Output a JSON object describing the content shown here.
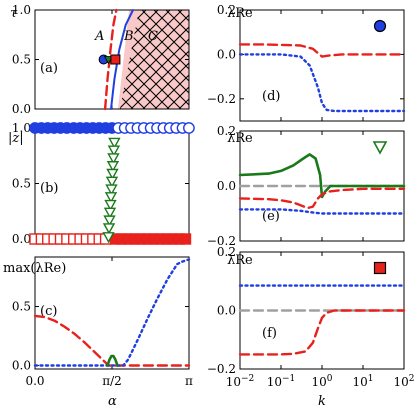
{
  "chart_data": [
    {
      "type": "line",
      "panel": "a",
      "panel_label": "(a)",
      "ylabel": "τ",
      "xlim": [
        0,
        3.1416
      ],
      "ylim": [
        0,
        1
      ],
      "yticks": [
        0,
        0.5,
        1
      ],
      "ytick_labels": [
        "0.0",
        "0.5",
        "1.0"
      ],
      "region_labels": [
        "A",
        "B",
        "C"
      ],
      "series": [
        {
          "role": "boundary-blue",
          "color": "#1f3fe0",
          "x": [
            1.55,
            1.62,
            1.72,
            1.85,
            2.0
          ],
          "y": [
            0,
            0.3,
            0.6,
            0.85,
            1.0
          ]
        },
        {
          "role": "boundary-red-dashed",
          "color": "#e8211d",
          "x": [
            1.43,
            1.48,
            1.54,
            1.6,
            1.66
          ],
          "y": [
            0,
            0.3,
            0.6,
            0.85,
            1.0
          ]
        }
      ],
      "markers": [
        {
          "shape": "circle",
          "color": "#1f3fe0",
          "x": 1.4,
          "y": 0.5
        },
        {
          "shape": "triangle-down",
          "color": "#1a7a1a",
          "x": 1.5,
          "y": 0.5
        },
        {
          "shape": "square",
          "color": "#e8211d",
          "x": 1.64,
          "y": 0.5
        }
      ]
    },
    {
      "type": "scatter",
      "panel": "b",
      "panel_label": "(b)",
      "ylabel": "|z|",
      "xlim": [
        0,
        3.1416
      ],
      "ylim": [
        0,
        1
      ],
      "yticks": [
        0,
        0.5,
        1
      ],
      "ytick_labels": [
        "0.0",
        "0.5",
        "1.0"
      ],
      "series": [
        {
          "role": "blue-filled-circles",
          "color": "#1f3fe0",
          "x": [
            0,
            0.13,
            0.26,
            0.39,
            0.52,
            0.65,
            0.79,
            0.92,
            1.05,
            1.18,
            1.31,
            1.44,
            1.57
          ],
          "y": [
            1,
            1,
            1,
            1,
            1,
            1,
            1,
            1,
            1,
            1,
            1,
            1,
            1
          ]
        },
        {
          "role": "blue-open-circles",
          "color": "#1f3fe0",
          "x": [
            1.7,
            1.83,
            1.96,
            2.09,
            2.22,
            2.36,
            2.49,
            2.62,
            2.75,
            2.88,
            3.01,
            3.14
          ],
          "y": [
            1,
            1,
            1,
            1,
            1,
            1,
            1,
            1,
            1,
            1,
            1,
            1
          ]
        },
        {
          "role": "red-open-squares",
          "color": "#e8211d",
          "x": [
            0,
            0.13,
            0.26,
            0.39,
            0.52,
            0.65,
            0.79,
            0.92,
            1.05,
            1.18,
            1.31,
            1.44
          ],
          "y": [
            0,
            0,
            0,
            0,
            0,
            0,
            0,
            0,
            0,
            0,
            0,
            0
          ]
        },
        {
          "role": "red-filled-squares",
          "color": "#e8211d",
          "x": [
            1.64,
            1.77,
            1.9,
            2.03,
            2.16,
            2.29,
            2.42,
            2.55,
            2.68,
            2.81,
            2.94,
            3.07
          ],
          "y": [
            0,
            0,
            0,
            0,
            0,
            0,
            0,
            0,
            0,
            0,
            0,
            0
          ]
        },
        {
          "role": "green-open-triangles",
          "color": "#1a7a1a",
          "x": [
            1.62,
            1.61,
            1.6,
            1.59,
            1.58,
            1.57,
            1.56,
            1.55,
            1.54,
            1.53,
            1.52,
            1.51,
            1.5
          ],
          "y": [
            0.87,
            0.8,
            0.73,
            0.66,
            0.59,
            0.52,
            0.45,
            0.38,
            0.31,
            0.24,
            0.17,
            0.1,
            0.02
          ]
        }
      ]
    },
    {
      "type": "line",
      "panel": "c",
      "panel_label": "(c)",
      "ylabel": "max(λRe)",
      "xlabel": "α",
      "xlim": [
        0,
        3.1416
      ],
      "ylim": [
        -0.03,
        0.92
      ],
      "yticks": [
        0,
        0.5
      ],
      "ytick_labels": [
        "0.0",
        "0.5"
      ],
      "xticks": [
        0,
        1.5708,
        3.1416
      ],
      "xtick_labels": [
        "0.0",
        "π/2",
        "π"
      ],
      "series": [
        {
          "role": "red-dashed",
          "color": "#e8211d",
          "x": [
            0,
            0.2,
            0.4,
            0.6,
            0.8,
            1.0,
            1.2,
            1.35,
            1.45,
            1.5,
            1.56,
            1.62,
            1.7,
            1.9,
            2.3,
            2.8,
            3.1416
          ],
          "y": [
            0.42,
            0.41,
            0.38,
            0.33,
            0.27,
            0.2,
            0.12,
            0.06,
            0.02,
            0.0,
            0.0,
            0.0,
            0.0,
            0.0,
            0.0,
            0.0,
            0.0
          ]
        },
        {
          "role": "blue-dotted",
          "color": "#1f3fe0",
          "x": [
            0,
            0.5,
            1.0,
            1.5,
            1.7,
            1.8,
            1.9,
            2.1,
            2.3,
            2.5,
            2.7,
            2.9,
            3.0,
            3.1416
          ],
          "y": [
            0.0,
            0.0,
            0.0,
            0.0,
            0.0,
            0.0,
            0.05,
            0.22,
            0.4,
            0.57,
            0.73,
            0.86,
            0.88,
            0.9
          ]
        },
        {
          "role": "green-solid",
          "color": "#1a7a1a",
          "x": [
            1.48,
            1.52,
            1.56,
            1.6,
            1.64,
            1.68
          ],
          "y": [
            0.0,
            0.05,
            0.08,
            0.08,
            0.05,
            0.0
          ]
        }
      ]
    },
    {
      "type": "line",
      "panel": "d",
      "panel_label": "(d)",
      "ylabel": "λRe",
      "xscale": "log",
      "xlim": [
        0.01,
        100
      ],
      "ylim": [
        -0.3,
        0.2
      ],
      "yticks": [
        -0.2,
        0,
        0.2
      ],
      "ytick_labels": [
        "−0.2",
        "0.0",
        "0.2"
      ],
      "marker": {
        "shape": "circle",
        "color": "#1f3fe0"
      },
      "series": [
        {
          "role": "red-dashed",
          "color": "#e8211d",
          "x": [
            0.01,
            0.03,
            0.1,
            0.3,
            0.6,
            1,
            1.5,
            3,
            10,
            100
          ],
          "y": [
            0.045,
            0.045,
            0.043,
            0.04,
            0.025,
            -0.01,
            -0.005,
            0.0,
            0.0,
            0.0
          ]
        },
        {
          "role": "blue-dotted",
          "color": "#1f3fe0",
          "x": [
            0.01,
            0.1,
            0.3,
            0.5,
            0.8,
            1.0,
            1.3,
            2,
            5,
            10,
            100
          ],
          "y": [
            0.0,
            0.0,
            -0.01,
            -0.05,
            -0.15,
            -0.22,
            -0.25,
            -0.255,
            -0.255,
            -0.255,
            -0.255
          ]
        }
      ]
    },
    {
      "type": "line",
      "panel": "e",
      "panel_label": "(e)",
      "ylabel": "λRe",
      "xscale": "log",
      "xlim": [
        0.01,
        100
      ],
      "ylim": [
        -0.2,
        0.2
      ],
      "yticks": [
        -0.2,
        0,
        0.2
      ],
      "ytick_labels": [
        "−0.2",
        "0.0",
        "0.2"
      ],
      "marker": {
        "shape": "triangle-down-open",
        "color": "#1a7a1a"
      },
      "series": [
        {
          "role": "grey-dashed",
          "color": "#a0a0a0",
          "x": [
            0.01,
            100
          ],
          "y": [
            0.0,
            0.0
          ]
        },
        {
          "role": "green-solid",
          "color": "#1a7a1a",
          "x": [
            0.01,
            0.05,
            0.1,
            0.2,
            0.35,
            0.5,
            0.7,
            0.9,
            1.0,
            1.2,
            1.6,
            3,
            10,
            100
          ],
          "y": [
            0.04,
            0.045,
            0.055,
            0.075,
            0.1,
            0.115,
            0.1,
            0.04,
            -0.04,
            -0.02,
            0.0,
            0.0,
            0.0,
            0.0
          ]
        },
        {
          "role": "red-dashed",
          "color": "#e8211d",
          "x": [
            0.01,
            0.05,
            0.1,
            0.2,
            0.3,
            0.45,
            0.6,
            0.8,
            1.0,
            1.5,
            3,
            10,
            100
          ],
          "y": [
            -0.045,
            -0.048,
            -0.052,
            -0.06,
            -0.07,
            -0.08,
            -0.075,
            -0.045,
            -0.03,
            -0.02,
            -0.015,
            -0.01,
            -0.01
          ]
        },
        {
          "role": "blue-dotted",
          "color": "#1f3fe0",
          "x": [
            0.01,
            0.1,
            0.3,
            0.5,
            1.0,
            2.0,
            10,
            100
          ],
          "y": [
            -0.085,
            -0.085,
            -0.09,
            -0.095,
            -0.1,
            -0.1,
            -0.1,
            -0.1
          ]
        }
      ]
    },
    {
      "type": "line",
      "panel": "f",
      "panel_label": "(f)",
      "ylabel": "λRe",
      "xlabel": "k",
      "xscale": "log",
      "xlim": [
        0.01,
        100
      ],
      "ylim": [
        -0.2,
        0.2
      ],
      "yticks": [
        -0.2,
        0,
        0.2
      ],
      "ytick_labels": [
        "−0.2",
        "0.0",
        "0.2"
      ],
      "xticks": [
        0.01,
        0.1,
        1,
        10,
        100
      ],
      "xtick_labels": [
        "10−2",
        "10−1",
        "100",
        "101",
        "102"
      ],
      "marker": {
        "shape": "square",
        "color": "#e8211d"
      },
      "series": [
        {
          "role": "blue-dotted",
          "color": "#1f3fe0",
          "x": [
            0.01,
            100
          ],
          "y": [
            0.085,
            0.085
          ]
        },
        {
          "role": "grey-dashed",
          "color": "#a0a0a0",
          "x": [
            0.01,
            100
          ],
          "y": [
            0.0,
            0.0
          ]
        },
        {
          "role": "red-dashed",
          "color": "#e8211d",
          "x": [
            0.01,
            0.1,
            0.2,
            0.4,
            0.6,
            0.8,
            1.0,
            1.3,
            2,
            5,
            10,
            100
          ],
          "y": [
            -0.15,
            -0.15,
            -0.148,
            -0.14,
            -0.11,
            -0.06,
            -0.025,
            -0.008,
            0.0,
            0.0,
            0.0,
            0.0
          ]
        }
      ]
    }
  ]
}
